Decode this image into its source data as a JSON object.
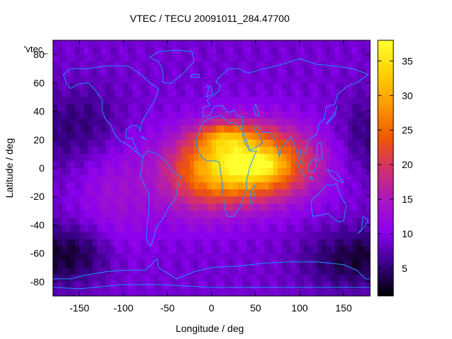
{
  "chart_data": {
    "type": "heatmap",
    "title": "VTEC / TECU 20091011_284.47700",
    "xlabel": "Longitude / deg",
    "ylabel": "Latitude / deg",
    "key_label": "'vtec_",
    "xlim": [
      -180,
      180
    ],
    "ylim": [
      -90,
      90
    ],
    "xticks": [
      -150,
      -100,
      -50,
      0,
      50,
      100,
      150
    ],
    "yticks": [
      -80,
      -60,
      -40,
      -20,
      0,
      20,
      40,
      60,
      80
    ],
    "colorbar": {
      "range": [
        1,
        38
      ],
      "ticks": [
        5,
        10,
        15,
        20,
        25,
        30,
        35
      ],
      "palette": [
        "#000000",
        "#3a0088",
        "#8a00ee",
        "#a818c0",
        "#d4306a",
        "#f05a00",
        "#ff9c00",
        "#ffd300",
        "#ffff30"
      ]
    },
    "grid": {
      "lon_step": 5,
      "lat_step": 5
    },
    "field": {
      "background": 9,
      "peaks": [
        {
          "lon": 40,
          "lat": 3,
          "amp": 27,
          "slon": 50,
          "slat": 18
        },
        {
          "lon": 15,
          "lat": 22,
          "amp": 9,
          "slon": 22,
          "slat": 7
        },
        {
          "lon": 50,
          "lat": 2,
          "amp": 7,
          "slon": 18,
          "slat": 5
        },
        {
          "lon": -15,
          "lat": -12,
          "amp": 6,
          "slon": 35,
          "slat": 20
        },
        {
          "lon": -110,
          "lat": -20,
          "amp": 4,
          "slon": 30,
          "slat": 30
        }
      ],
      "troughs": [
        {
          "lon": -140,
          "lat": 30,
          "amp": 4,
          "slon": 30,
          "slat": 20
        },
        {
          "lon": -150,
          "lat": -60,
          "amp": 5,
          "slon": 30,
          "slat": 15
        },
        {
          "lon": 150,
          "lat": -65,
          "amp": 5,
          "slon": 35,
          "slat": 15
        },
        {
          "lon": 170,
          "lat": 20,
          "amp": 3,
          "slon": 20,
          "slat": 20
        }
      ]
    },
    "coastline_color": "#1e90ff"
  }
}
